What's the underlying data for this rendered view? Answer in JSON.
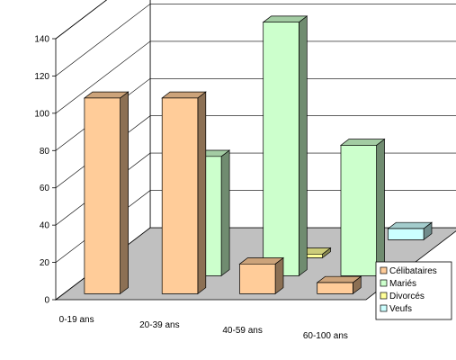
{
  "chart_data": {
    "type": "bar",
    "categories": [
      "0-19 ans",
      "20-39 ans",
      "40-59 ans",
      "60-100 ans"
    ],
    "series": [
      {
        "name": "Célibataires",
        "color": "#FFCC99",
        "values": [
          105,
          105,
          16,
          6
        ]
      },
      {
        "name": "Mariés",
        "color": "#CCFFCC",
        "values": [
          0,
          64,
          136,
          70
        ]
      },
      {
        "name": "Divorcés",
        "color": "#FFFF99",
        "values": [
          0,
          0,
          2,
          0
        ]
      },
      {
        "name": "Veufs",
        "color": "#CCFFFF",
        "values": [
          0,
          0,
          0,
          6
        ]
      }
    ],
    "ylim": [
      0,
      140
    ],
    "yticks": [
      "0",
      "20",
      "40",
      "60",
      "80",
      "100",
      "120",
      "140"
    ],
    "grid": true,
    "legend_position": "right"
  }
}
